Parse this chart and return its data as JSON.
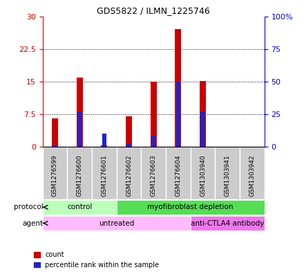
{
  "title": "GDS5822 / ILMN_1225746",
  "samples": [
    "GSM1276599",
    "GSM1276600",
    "GSM1276601",
    "GSM1276602",
    "GSM1276603",
    "GSM1276604",
    "GSM1303940",
    "GSM1303941",
    "GSM1303942"
  ],
  "counts": [
    6.5,
    16.0,
    0.3,
    7.0,
    15.0,
    27.0,
    15.2,
    0.05,
    0.05
  ],
  "percentiles": [
    1.5,
    27.0,
    10.5,
    2.5,
    8.5,
    50.0,
    27.0,
    0.3,
    0.3
  ],
  "ylim_left": [
    0,
    30
  ],
  "ylim_right": [
    0,
    100
  ],
  "yticks_left": [
    0,
    7.5,
    15,
    22.5,
    30
  ],
  "yticks_right": [
    0,
    25,
    50,
    75,
    100
  ],
  "ytick_labels_left": [
    "0",
    "7.5",
    "15",
    "22.5",
    "30"
  ],
  "ytick_labels_right": [
    "0",
    "25",
    "50",
    "75",
    "100%"
  ],
  "red_bar_width": 0.25,
  "blue_bar_width": 0.18,
  "bar_color_red": "#cc0000",
  "bar_color_blue": "#2222cc",
  "protocol_groups": [
    {
      "label": "control",
      "start": 0,
      "end": 3,
      "color": "#bbffbb"
    },
    {
      "label": "myofibroblast depletion",
      "start": 3,
      "end": 9,
      "color": "#55dd55"
    }
  ],
  "agent_groups": [
    {
      "label": "untreated",
      "start": 0,
      "end": 6,
      "color": "#ffbbff"
    },
    {
      "label": "anti-CTLA4 antibody",
      "start": 6,
      "end": 9,
      "color": "#ee77ee"
    }
  ],
  "protocol_label": "protocol",
  "agent_label": "agent",
  "legend_count_label": "count",
  "legend_percentile_label": "percentile rank within the sample",
  "left_tick_color": "#cc0000",
  "right_tick_color": "#0000cc",
  "grid_color": "#000000",
  "label_area_color": "#cccccc",
  "plot_bg": "#ffffff"
}
